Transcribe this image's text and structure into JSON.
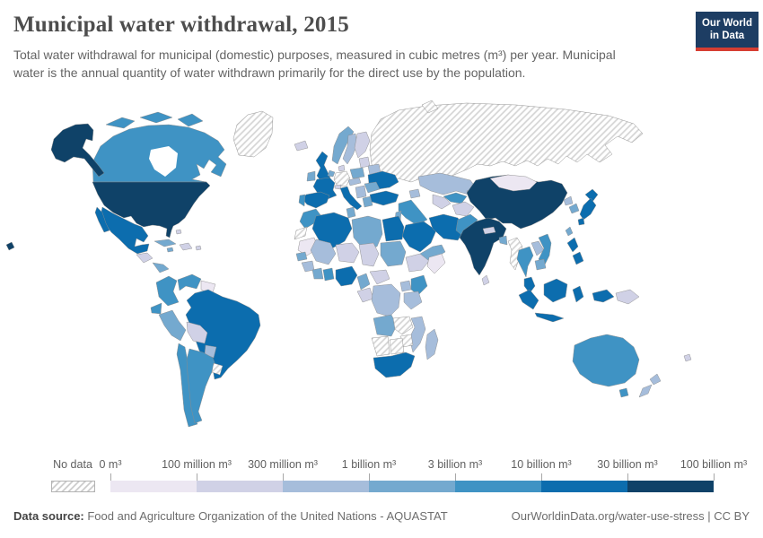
{
  "header": {
    "title": "Municipal water withdrawal, 2015",
    "subtitle": "Total water withdrawal for municipal (domestic) purposes, measured in cubic metres (m³) per year. Municipal water is the annual quantity of water withdrawn primarily for the direct use by the population.",
    "logo": {
      "line1": "Our World",
      "line2": "in Data",
      "bg_color": "#1d3d63",
      "accent_color": "#d63e32"
    }
  },
  "legend": {
    "no_data_label": "No data",
    "tick_labels": [
      "0 m³",
      "100 million m³",
      "300 million m³",
      "1 billion m³",
      "3 billion m³",
      "10 billion m³",
      "30 billion m³",
      "100 billion m³"
    ],
    "bin_colors": [
      "#ece7f2",
      "#d0d1e6",
      "#a6bddb",
      "#74a9cf",
      "#3f93c4",
      "#0c6dae",
      "#0f4268"
    ],
    "no_data_hatch_line_color": "#d4d4d4"
  },
  "footer": {
    "source_label": "Data source:",
    "source_text": " Food and Agriculture Organization of the United Nations - AQUASTAT",
    "link_text": "OurWorldinData.org/water-use-stress | CC BY"
  },
  "chart_data": {
    "type": "choropleth",
    "title": "Municipal water withdrawal, 2015",
    "year": 2015,
    "unit": "cubic metres (m³) per year",
    "legend_position": "bottom",
    "bins": [
      {
        "range": "0 m³ – 100 million m³",
        "color": "#ece7f2"
      },
      {
        "range": "100 million m³ – 300 million m³",
        "color": "#d0d1e6"
      },
      {
        "range": "300 million m³ – 1 billion m³",
        "color": "#a6bddb"
      },
      {
        "range": "1 billion m³ – 3 billion m³",
        "color": "#74a9cf"
      },
      {
        "range": "3 billion m³ – 10 billion m³",
        "color": "#3f93c4"
      },
      {
        "range": "10 billion m³ – 30 billion m³",
        "color": "#0c6dae"
      },
      {
        "range": "30 billion m³ – 100 billion m³",
        "color": "#0f4268"
      }
    ],
    "regions": {
      "alaska-usa": 6,
      "canada": 4,
      "arctic-islands-1": 4,
      "arctic-islands-2": 4,
      "arctic-islands-3": 4,
      "greenland": "no-data",
      "iceland": 1,
      "usa": 6,
      "hawaii-usa": 6,
      "mexico": 5,
      "baja-mexico": 5,
      "guatemala-region": 1,
      "costa-rica-panama": 3,
      "cuba": 3,
      "jamaica": 3,
      "hispaniola": 1,
      "bahamas": 1,
      "puerto-rico": 1,
      "colombia": 4,
      "venezuela": 4,
      "guyana-suriname": 0,
      "brazil": 5,
      "ecuador": 4,
      "peru": 3,
      "bolivia": 1,
      "paraguay": 2,
      "chile": 4,
      "argentina": 4,
      "uruguay": "no-data",
      "uk": 5,
      "ireland": 3,
      "norway": 3,
      "sweden": 2,
      "finland": 1,
      "denmark": 1,
      "germany": "no-data",
      "benelux": 3,
      "france": 5,
      "spain": 5,
      "portugal": 4,
      "italy": 5,
      "switzerland": 1,
      "austria-czechia": 2,
      "poland": 3,
      "baltics": 1,
      "belarus": 2,
      "ukraine": 5,
      "romania": 3,
      "balkans": 2,
      "greece": 3,
      "russia": "no-data",
      "novaya-zemlya": "no-data",
      "turkey": 5,
      "caucasus": 2,
      "syria-iraq": 4,
      "israel-jordan": 3,
      "saudi-arabia": 5,
      "yemen-oman": 3,
      "iran": 5,
      "kazakhstan": 2,
      "uzbekistan": 4,
      "turkmenistan": 1,
      "afghanistan": 1,
      "kyrgyz-tajik": 2,
      "pakistan": 4,
      "india": 6,
      "nepal": 1,
      "bangladesh": 3,
      "sri-lanka": 1,
      "myanmar": "no-data",
      "china": 6,
      "mongolia": 0,
      "north-korea": 2,
      "south-korea": 3,
      "japan-hokkaido": 5,
      "japan-honshu": 5,
      "japan-kyushu": 5,
      "taiwan": 3,
      "thailand": 4,
      "laos": 2,
      "vietnam": 4,
      "cambodia": 3,
      "malaysia": 5,
      "philippines-north": 5,
      "philippines-south": 5,
      "sumatra": 5,
      "java": 5,
      "borneo": 5,
      "sulawesi": 5,
      "west-papua": 5,
      "papua-new-guinea": 1,
      "fiji": 1,
      "australia": 4,
      "tasmania": 4,
      "nz-north": 2,
      "nz-south": 2,
      "morocco": 4,
      "western-sahara": "no-data",
      "algeria": 5,
      "tunisia": 3,
      "libya": 3,
      "egypt": 5,
      "mauritania": 0,
      "mali": 2,
      "niger": 1,
      "chad": 1,
      "sudan": 3,
      "ethiopia": 1,
      "somalia": 0,
      "senegal": 3,
      "guinea": 2,
      "ivory-coast": 3,
      "ghana": 4,
      "nigeria": 5,
      "cameroon": 3,
      "central-african-republic": 1,
      "gabon-congo": 1,
      "drc": 2,
      "uganda": 2,
      "kenya": 4,
      "tanzania": 2,
      "angola": 3,
      "zambia": "no-data",
      "mozambique": 2,
      "zimbabwe": "no-data",
      "namibia": "no-data",
      "botswana": "no-data",
      "south-africa": 5,
      "madagascar": 2
    }
  }
}
